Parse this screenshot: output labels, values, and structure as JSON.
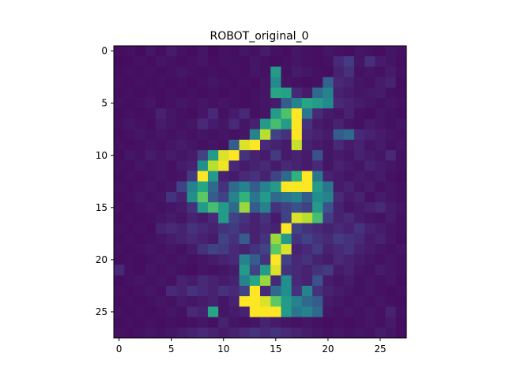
{
  "chart_data": {
    "type": "heatmap",
    "title": "ROBOT_original_0",
    "colormap": "viridis",
    "x_ticks": [
      "0",
      "5",
      "10",
      "15",
      "20",
      "25"
    ],
    "y_ticks": [
      "0",
      "5",
      "10",
      "15",
      "20",
      "25"
    ],
    "xlim": [
      -0.5,
      27.5
    ],
    "ylim": [
      27.5,
      -0.5
    ],
    "grid": false,
    "rows": 28,
    "cols": 28,
    "value_range": [
      0,
      1
    ],
    "values": [
      [
        0.04,
        0.05,
        0.03,
        0.06,
        0.04,
        0.08,
        0.05,
        0.04,
        0.06,
        0.03,
        0.05,
        0.04,
        0.06,
        0.05,
        0.08,
        0.05,
        0.04,
        0.06,
        0.05,
        0.04,
        0.06,
        0.05,
        0.04,
        0.06,
        0.05,
        0.04,
        0.06,
        0.05
      ],
      [
        0.03,
        0.04,
        0.05,
        0.04,
        0.06,
        0.05,
        0.04,
        0.05,
        0.06,
        0.04,
        0.05,
        0.05,
        0.04,
        0.06,
        0.05,
        0.04,
        0.05,
        0.06,
        0.05,
        0.04,
        0.05,
        0.12,
        0.18,
        0.06,
        0.14,
        0.08,
        0.06,
        0.04
      ],
      [
        0.04,
        0.05,
        0.04,
        0.05,
        0.04,
        0.05,
        0.06,
        0.05,
        0.04,
        0.05,
        0.04,
        0.05,
        0.04,
        0.06,
        0.05,
        0.55,
        0.05,
        0.08,
        0.06,
        0.05,
        0.04,
        0.1,
        0.14,
        0.05,
        0.06,
        0.05,
        0.08,
        0.05
      ],
      [
        0.05,
        0.04,
        0.05,
        0.04,
        0.05,
        0.04,
        0.05,
        0.04,
        0.05,
        0.06,
        0.05,
        0.04,
        0.05,
        0.04,
        0.06,
        0.48,
        0.06,
        0.05,
        0.04,
        0.05,
        0.32,
        0.12,
        0.1,
        0.06,
        0.05,
        0.08,
        0.1,
        0.04
      ],
      [
        0.04,
        0.05,
        0.04,
        0.05,
        0.04,
        0.05,
        0.04,
        0.05,
        0.04,
        0.05,
        0.04,
        0.05,
        0.04,
        0.05,
        0.06,
        0.6,
        0.58,
        0.12,
        0.08,
        0.35,
        0.45,
        0.1,
        0.08,
        0.06,
        0.07,
        0.08,
        0.05,
        0.04
      ],
      [
        0.05,
        0.04,
        0.05,
        0.06,
        0.04,
        0.05,
        0.06,
        0.05,
        0.06,
        0.05,
        0.06,
        0.05,
        0.04,
        0.05,
        0.06,
        0.08,
        0.3,
        0.45,
        0.6,
        0.55,
        0.48,
        0.12,
        0.1,
        0.08,
        0.06,
        0.05,
        0.06,
        0.05
      ],
      [
        0.04,
        0.05,
        0.04,
        0.05,
        0.1,
        0.06,
        0.05,
        0.04,
        0.06,
        0.12,
        0.05,
        0.08,
        0.12,
        0.05,
        0.06,
        0.55,
        0.72,
        1.0,
        0.4,
        0.12,
        0.08,
        0.06,
        0.1,
        0.05,
        0.04,
        0.06,
        0.05,
        0.04
      ],
      [
        0.05,
        0.06,
        0.05,
        0.04,
        0.08,
        0.06,
        0.05,
        0.06,
        0.12,
        0.08,
        0.06,
        0.12,
        0.06,
        0.1,
        0.55,
        0.7,
        0.55,
        1.0,
        0.15,
        0.08,
        0.06,
        0.1,
        0.06,
        0.05,
        0.08,
        0.06,
        0.05,
        0.06
      ],
      [
        0.04,
        0.05,
        0.06,
        0.05,
        0.06,
        0.05,
        0.06,
        0.05,
        0.06,
        0.05,
        0.06,
        0.05,
        0.06,
        0.45,
        0.9,
        0.2,
        0.15,
        1.0,
        0.12,
        0.1,
        0.08,
        0.3,
        0.35,
        0.12,
        0.1,
        0.08,
        0.06,
        0.05
      ],
      [
        0.05,
        0.04,
        0.05,
        0.06,
        0.05,
        0.06,
        0.08,
        0.06,
        0.05,
        0.06,
        0.05,
        0.3,
        0.95,
        1.0,
        0.12,
        0.1,
        0.08,
        0.92,
        0.1,
        0.08,
        0.06,
        0.12,
        0.08,
        0.1,
        0.06,
        0.08,
        0.05,
        0.06
      ],
      [
        0.04,
        0.06,
        0.05,
        0.08,
        0.06,
        0.08,
        0.06,
        0.08,
        0.2,
        0.55,
        0.95,
        1.0,
        0.15,
        0.1,
        0.08,
        0.18,
        0.08,
        0.1,
        0.08,
        0.25,
        0.06,
        0.08,
        0.06,
        0.1,
        0.08,
        0.06,
        0.12,
        0.05
      ],
      [
        0.05,
        0.04,
        0.06,
        0.05,
        0.06,
        0.05,
        0.08,
        0.1,
        0.5,
        0.9,
        0.98,
        0.12,
        0.08,
        0.1,
        0.12,
        0.08,
        0.12,
        0.1,
        0.08,
        0.12,
        0.06,
        0.1,
        0.08,
        0.06,
        0.1,
        0.08,
        0.06,
        0.05
      ],
      [
        0.04,
        0.05,
        0.04,
        0.05,
        0.06,
        0.05,
        0.06,
        0.18,
        1.0,
        0.55,
        0.1,
        0.08,
        0.12,
        0.15,
        0.1,
        0.2,
        0.35,
        0.65,
        1.0,
        0.4,
        0.1,
        0.08,
        0.06,
        0.08,
        0.06,
        0.08,
        0.05,
        0.04
      ],
      [
        0.05,
        0.04,
        0.05,
        0.06,
        0.05,
        0.06,
        0.2,
        0.45,
        0.6,
        0.35,
        0.15,
        0.35,
        0.45,
        0.3,
        0.45,
        0.55,
        1.0,
        1.0,
        1.0,
        0.55,
        0.4,
        0.08,
        0.1,
        0.06,
        0.08,
        0.05,
        0.06,
        0.05
      ],
      [
        0.04,
        0.05,
        0.06,
        0.05,
        0.06,
        0.15,
        0.1,
        0.5,
        0.75,
        0.3,
        0.2,
        0.45,
        0.65,
        0.4,
        0.55,
        0.35,
        0.4,
        0.45,
        0.3,
        0.5,
        0.45,
        0.12,
        0.08,
        0.1,
        0.05,
        0.08,
        0.06,
        0.05
      ],
      [
        0.05,
        0.04,
        0.05,
        0.06,
        0.05,
        0.06,
        0.08,
        0.15,
        0.55,
        0.7,
        0.55,
        0.35,
        0.85,
        0.3,
        0.45,
        0.15,
        0.2,
        0.25,
        0.2,
        0.55,
        0.25,
        0.1,
        0.06,
        0.08,
        0.1,
        0.12,
        0.08,
        0.06
      ],
      [
        0.04,
        0.05,
        0.04,
        0.05,
        0.06,
        0.08,
        0.06,
        0.1,
        0.08,
        0.12,
        0.55,
        0.2,
        0.15,
        0.1,
        0.15,
        0.08,
        0.2,
        0.95,
        0.9,
        0.7,
        0.18,
        0.1,
        0.12,
        0.08,
        0.06,
        0.05,
        0.08,
        0.05
      ],
      [
        0.05,
        0.04,
        0.05,
        0.04,
        0.1,
        0.12,
        0.1,
        0.15,
        0.12,
        0.1,
        0.15,
        0.18,
        0.12,
        0.1,
        0.12,
        0.1,
        1.0,
        0.2,
        0.15,
        0.12,
        0.1,
        0.12,
        0.1,
        0.15,
        0.1,
        0.08,
        0.06,
        0.05
      ],
      [
        0.04,
        0.05,
        0.04,
        0.05,
        0.06,
        0.08,
        0.1,
        0.12,
        0.1,
        0.08,
        0.2,
        0.15,
        0.3,
        0.1,
        0.15,
        0.85,
        0.55,
        0.15,
        0.2,
        0.15,
        0.12,
        0.18,
        0.15,
        0.12,
        0.08,
        0.1,
        0.06,
        0.04
      ],
      [
        0.05,
        0.04,
        0.05,
        0.06,
        0.05,
        0.06,
        0.05,
        0.08,
        0.15,
        0.2,
        0.18,
        0.12,
        0.1,
        0.15,
        0.2,
        0.75,
        0.95,
        0.1,
        0.12,
        0.18,
        0.1,
        0.12,
        0.15,
        0.1,
        0.08,
        0.06,
        0.05,
        0.06
      ],
      [
        0.04,
        0.05,
        0.04,
        0.05,
        0.06,
        0.05,
        0.06,
        0.05,
        0.06,
        0.08,
        0.1,
        0.12,
        0.45,
        0.3,
        0.15,
        1.0,
        0.2,
        0.12,
        0.15,
        0.1,
        0.08,
        0.12,
        0.1,
        0.08,
        0.06,
        0.05,
        0.06,
        0.05
      ],
      [
        0.12,
        0.05,
        0.04,
        0.06,
        0.05,
        0.06,
        0.05,
        0.04,
        0.06,
        0.05,
        0.06,
        0.08,
        0.55,
        0.2,
        0.55,
        0.95,
        0.15,
        0.12,
        0.1,
        0.15,
        0.18,
        0.08,
        0.1,
        0.06,
        0.05,
        0.08,
        0.06,
        0.05
      ],
      [
        0.04,
        0.05,
        0.06,
        0.05,
        0.06,
        0.05,
        0.1,
        0.08,
        0.12,
        0.1,
        0.08,
        0.1,
        0.45,
        0.6,
        0.85,
        0.12,
        0.5,
        0.12,
        0.1,
        0.25,
        0.08,
        0.06,
        0.08,
        0.05,
        0.06,
        0.05,
        0.06,
        0.04
      ],
      [
        0.05,
        0.04,
        0.05,
        0.06,
        0.05,
        0.12,
        0.1,
        0.15,
        0.12,
        0.1,
        0.15,
        0.12,
        0.2,
        1.0,
        0.12,
        0.35,
        0.5,
        0.15,
        0.45,
        0.15,
        0.1,
        0.08,
        0.06,
        0.05,
        0.06,
        0.05,
        0.04,
        0.05
      ],
      [
        0.04,
        0.05,
        0.04,
        0.05,
        0.06,
        0.05,
        0.08,
        0.06,
        0.08,
        0.1,
        0.06,
        0.1,
        1.0,
        1.0,
        0.95,
        0.75,
        0.55,
        0.45,
        0.35,
        0.3,
        0.08,
        0.06,
        0.05,
        0.06,
        0.05,
        0.06,
        0.05,
        0.04
      ],
      [
        0.05,
        0.04,
        0.05,
        0.04,
        0.05,
        0.06,
        0.05,
        0.12,
        0.1,
        0.6,
        0.06,
        0.08,
        0.1,
        1.0,
        1.0,
        1.0,
        0.55,
        0.4,
        0.45,
        0.35,
        0.06,
        0.05,
        0.06,
        0.05,
        0.06,
        0.05,
        0.1,
        0.05
      ],
      [
        0.04,
        0.05,
        0.04,
        0.05,
        0.04,
        0.05,
        0.04,
        0.05,
        0.06,
        0.05,
        0.1,
        0.06,
        0.05,
        0.06,
        0.1,
        0.08,
        0.06,
        0.05,
        0.06,
        0.05,
        0.04,
        0.05,
        0.04,
        0.05,
        0.06,
        0.05,
        0.08,
        0.04
      ],
      [
        0.05,
        0.04,
        0.05,
        0.06,
        0.05,
        0.06,
        0.08,
        0.1,
        0.12,
        0.1,
        0.08,
        0.1,
        0.12,
        0.15,
        0.12,
        0.15,
        0.12,
        0.1,
        0.08,
        0.06,
        0.05,
        0.06,
        0.05,
        0.06,
        0.05,
        0.08,
        0.06,
        0.04
      ]
    ]
  }
}
